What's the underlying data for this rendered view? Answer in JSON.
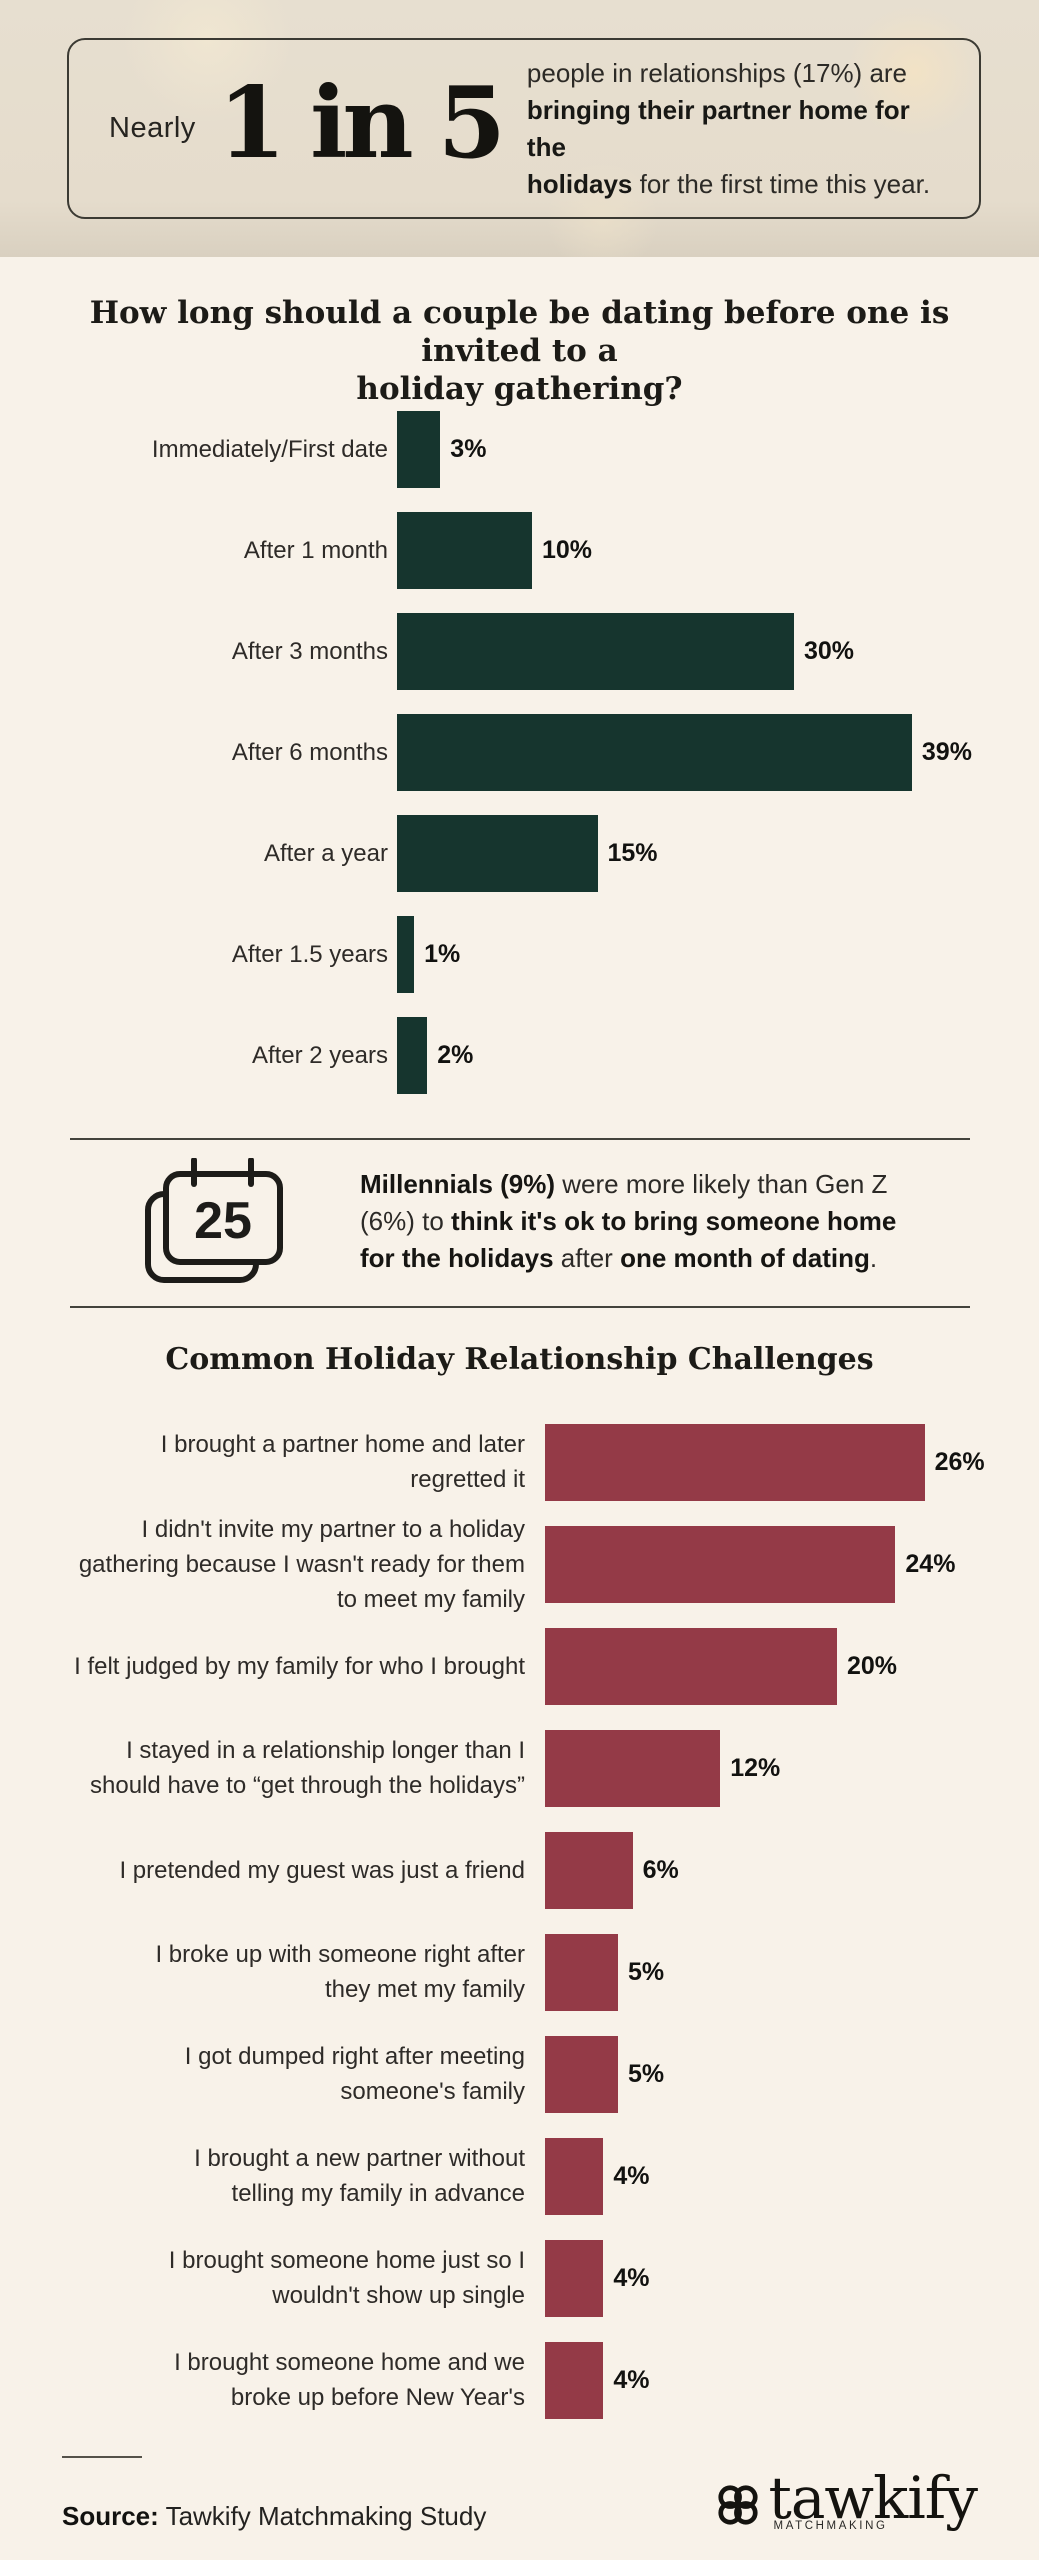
{
  "colors": {
    "hero_background": "#e5dccc",
    "body_background": "#f8f2e9",
    "chart1_bar": "#16352e",
    "chart2_bar": "#943a47",
    "text_dark": "#181815"
  },
  "hero": {
    "prefix": "Nearly",
    "big_stat": "1 in 5",
    "line1": "people in relationships (17%) are",
    "line2_bold": "bringing their partner home for the",
    "line3_bold": "holidays",
    "line3_rest": " for the first time this year."
  },
  "callout": {
    "calendar_day": "25",
    "l1_bold": "Millennials (9%)",
    "l1_rest": " were more likely than Gen Z",
    "l2_start": "(6%) to ",
    "l2_bold": "think it's ok to bring someone home",
    "l3_bold1": "for the holidays",
    "l3_mid": " after ",
    "l3_bold2": "one month of dating",
    "l3_end": "."
  },
  "chart_data": [
    {
      "type": "bar",
      "orientation": "horizontal",
      "title": "How long should a couple be dating before one is invited to a\nholiday gathering?",
      "categories": [
        "Immediately/First date",
        "After 1 month",
        "After 3 months",
        "After 6 months",
        "After a year",
        "After 1.5 years",
        "After 2 years"
      ],
      "values": [
        3,
        10,
        30,
        39,
        15,
        1,
        2
      ],
      "unit": "%",
      "xlim": [
        0,
        39
      ],
      "bar_color": "#16352e",
      "grid": false,
      "value_labels": "end-of-bar"
    },
    {
      "type": "bar",
      "orientation": "horizontal",
      "title": "Common Holiday Relationship Challenges",
      "categories": [
        "I brought a partner home and later\nregretted it",
        "I didn't invite my partner to a holiday\ngathering because I wasn't ready for them\nto meet my family",
        "I felt judged by my family for who I brought",
        "I stayed in a relationship longer than I\nshould have to “get through the holidays”",
        "I pretended my guest was just a friend",
        "I broke up with someone right after\nthey met my family",
        "I got dumped right after meeting\nsomeone's family",
        "I brought a new partner without\ntelling my family in advance",
        "I brought someone home just so I\nwouldn't show up single",
        "I brought someone home and we\nbroke up before New Year's"
      ],
      "values": [
        26,
        24,
        20,
        12,
        6,
        5,
        5,
        4,
        4,
        4
      ],
      "unit": "%",
      "xlim": [
        0,
        26
      ],
      "bar_color": "#943a47",
      "grid": false,
      "value_labels": "end-of-bar"
    }
  ],
  "footer": {
    "source_label": "Source:",
    "source_text": " Tawkify Matchmaking Study",
    "logo_text": "tawkify",
    "logo_sub": "MATCHMAKING"
  }
}
